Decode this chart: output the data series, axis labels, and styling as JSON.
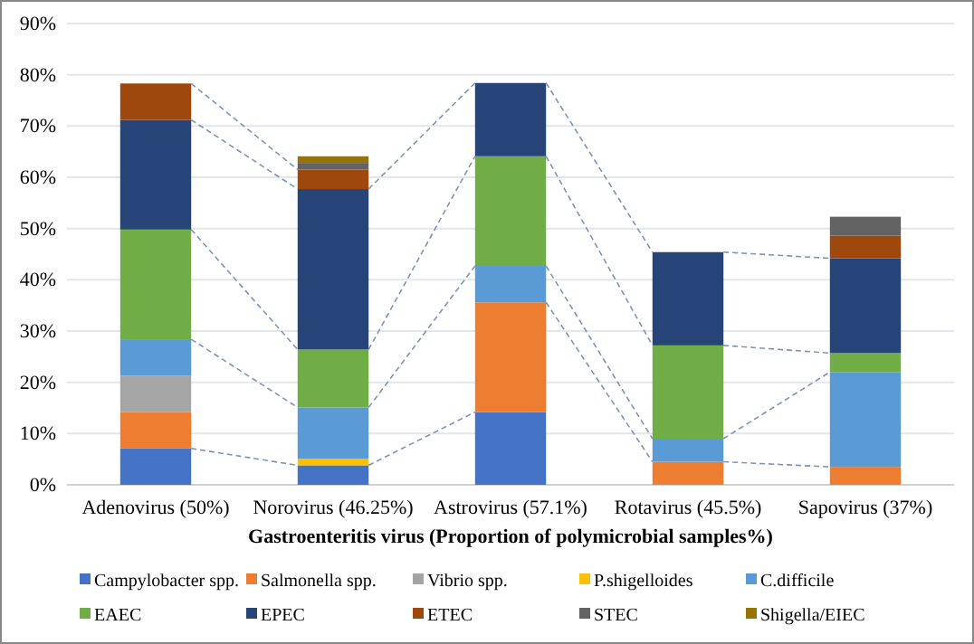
{
  "chart_data": {
    "type": "bar",
    "stacked": true,
    "xlabel": "Gastroenteritis virus (Proportion of polymicrobial samples%)",
    "categories": [
      "Adenovirus (50%)",
      "Norovirus (46.25%)",
      "Astrovirus (57.1%)",
      "Rotavirus (45.5%)",
      "Sapovirus (37%)"
    ],
    "series": [
      {
        "name": "Campylobacter spp.",
        "color": "#4472c4",
        "values": [
          7.1,
          3.8,
          14.2,
          0,
          0
        ]
      },
      {
        "name": "Salmonella spp.",
        "color": "#ed7d31",
        "values": [
          7.1,
          0,
          21.4,
          4.5,
          3.5
        ]
      },
      {
        "name": "Vibrio spp.",
        "color": "#a5a5a5",
        "values": [
          7.1,
          0,
          0,
          0,
          0
        ]
      },
      {
        "name": "P.shigelloides",
        "color": "#ffc000",
        "values": [
          0,
          1.3,
          0,
          0,
          0
        ]
      },
      {
        "name": "C.difficile",
        "color": "#5b9bd5",
        "values": [
          7.1,
          10,
          7.1,
          4.5,
          18.5
        ]
      },
      {
        "name": "EAEC",
        "color": "#70ad47",
        "values": [
          21.4,
          11.3,
          21.4,
          18.2,
          3.7
        ]
      },
      {
        "name": "EPEC",
        "color": "#264478",
        "values": [
          21.4,
          31.3,
          14.3,
          18.2,
          18.5
        ]
      },
      {
        "name": "ETEC",
        "color": "#9e480e",
        "values": [
          7.1,
          3.8,
          0,
          0,
          4.4
        ]
      },
      {
        "name": "STEC",
        "color": "#636363",
        "values": [
          0,
          1.3,
          0,
          0,
          3.7
        ]
      },
      {
        "name": "Shigella/EIEC",
        "color": "#997300",
        "values": [
          0,
          1.3,
          0,
          0,
          0
        ]
      }
    ],
    "ylim": [
      0,
      90
    ],
    "yticks": [
      {
        "value": 0,
        "label": "0%"
      },
      {
        "value": 10,
        "label": "10%"
      },
      {
        "value": 20,
        "label": "20%"
      },
      {
        "value": 30,
        "label": "30%"
      },
      {
        "value": 40,
        "label": "40%"
      },
      {
        "value": 50,
        "label": "50%"
      },
      {
        "value": 60,
        "label": "60%"
      },
      {
        "value": 70,
        "label": "70%"
      },
      {
        "value": 80,
        "label": "80%"
      },
      {
        "value": 90,
        "label": "90%"
      }
    ],
    "grid": "y",
    "legend": "bottom"
  }
}
